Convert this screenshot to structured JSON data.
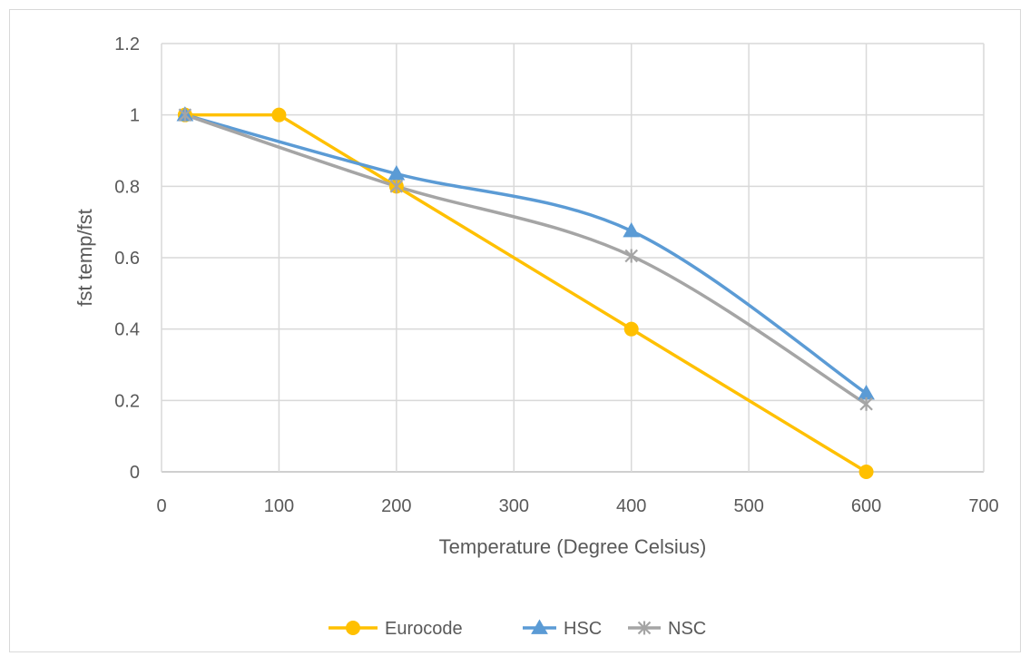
{
  "chart_data": {
    "type": "line",
    "title": "",
    "xlabel": "Temperature (Degree Celsius)",
    "ylabel": "fst temp/fst",
    "xlim": [
      0,
      700
    ],
    "ylim": [
      0,
      1.2
    ],
    "xticks": [
      0,
      100,
      200,
      300,
      400,
      500,
      600,
      700
    ],
    "yticks": [
      0,
      0.2,
      0.4,
      0.6,
      0.8,
      1,
      1.2
    ],
    "xtick_labels": [
      "0",
      "100",
      "200",
      "300",
      "400",
      "500",
      "600",
      "700"
    ],
    "ytick_labels": [
      "0",
      "0.2",
      "0.4",
      "0.6",
      "0.8",
      "1",
      "1.2"
    ],
    "grid": true,
    "legend_position": "bottom",
    "series": [
      {
        "name": "Eurocode",
        "color": "#FFC000",
        "marker": "circle",
        "smooth": false,
        "x": [
          20,
          100,
          200,
          400,
          600
        ],
        "y": [
          1.0,
          1.0,
          0.8,
          0.4,
          0.0
        ]
      },
      {
        "name": "HSC",
        "color": "#5B9BD5",
        "marker": "triangle",
        "smooth": true,
        "x": [
          20,
          200,
          400,
          600
        ],
        "y": [
          1.0,
          0.835,
          0.675,
          0.22
        ]
      },
      {
        "name": "NSC",
        "color": "#A5A5A5",
        "marker": "star",
        "smooth": true,
        "x": [
          20,
          200,
          400,
          600
        ],
        "y": [
          1.0,
          0.8,
          0.605,
          0.19
        ]
      }
    ]
  }
}
